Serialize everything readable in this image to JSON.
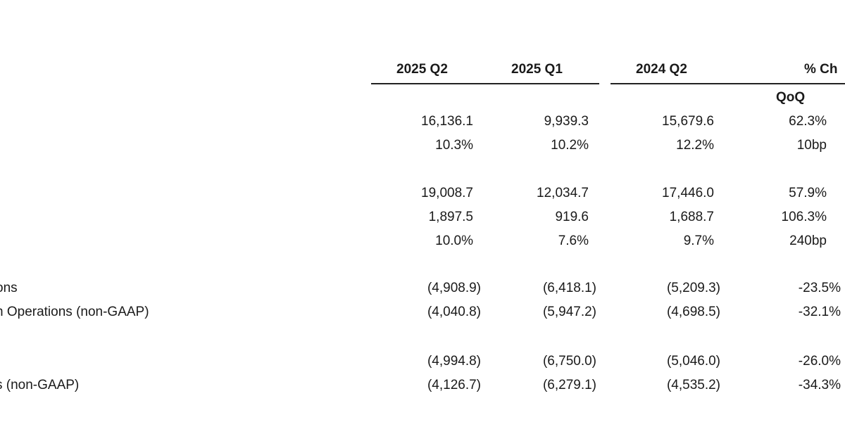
{
  "header": {
    "columns": [
      "2025 Q2",
      "2025 Q1",
      "2024 Q2",
      "% Ch"
    ],
    "subheader": "QoQ"
  },
  "rows": [
    {
      "label": "",
      "values": [
        "16,136.1",
        "9,939.3",
        "15,679.6",
        "62.3%"
      ],
      "paren": false
    },
    {
      "label": "",
      "values": [
        "10.3%",
        "10.2%",
        "12.2%",
        "10bp"
      ],
      "paren": false
    },
    {
      "label": "",
      "values": [
        "19,008.7",
        "12,034.7",
        "17,446.0",
        "57.9%"
      ],
      "paren": false
    },
    {
      "label": "",
      "values": [
        "1,897.5",
        "919.6",
        "1,688.7",
        "106.3%"
      ],
      "paren": false
    },
    {
      "label": "",
      "values": [
        "10.0%",
        "7.6%",
        "9.7%",
        "240bp"
      ],
      "paren": false
    },
    {
      "label": "ons",
      "values": [
        "(4,908.9)",
        "(6,418.1)",
        "(5,209.3)",
        "-23.5%"
      ],
      "paren": true
    },
    {
      "label": "n Operations (non-GAAP)",
      "values": [
        "(4,040.8)",
        "(5,947.2)",
        "(4,698.5)",
        "-32.1%"
      ],
      "paren": true
    },
    {
      "label": "",
      "values": [
        "(4,994.8)",
        "(6,750.0)",
        "(5,046.0)",
        "-26.0%"
      ],
      "paren": true
    },
    {
      "label": "s (non-GAAP)",
      "values": [
        "(4,126.7)",
        "(6,279.1)",
        "(4,535.2)",
        "-34.3%"
      ],
      "paren": true
    }
  ]
}
